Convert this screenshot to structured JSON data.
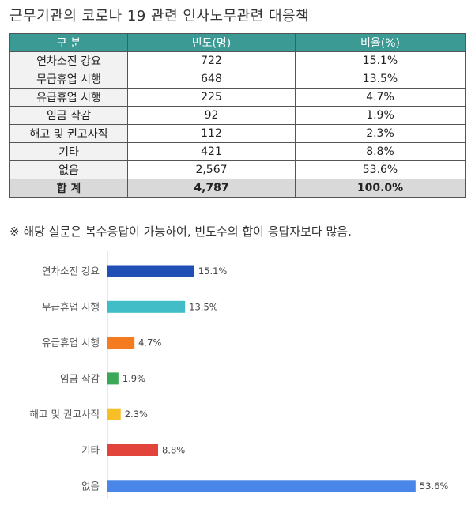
{
  "title": "근무기관의 코로나 19 관련 인사노무관련 대응책",
  "table": {
    "headers": [
      "구 분",
      "빈도(명)",
      "비율(%)"
    ],
    "rows": [
      [
        "연차소진 강요",
        "722",
        "15.1%"
      ],
      [
        "무급휴업 시행",
        "648",
        "13.5%"
      ],
      [
        "유급휴업 시행",
        "225",
        "4.7%"
      ],
      [
        "임금 삭감",
        "92",
        "1.9%"
      ],
      [
        "해고 및 권고사직",
        "112",
        "2.3%"
      ],
      [
        "기타",
        "421",
        "8.8%"
      ],
      [
        "없음",
        "2,567",
        "53.6%"
      ]
    ],
    "total": [
      "합 계",
      "4,787",
      "100.0%"
    ]
  },
  "note": "※ 해당 설문은 복수응답이 가능하여, 빈도수의 합이 응답자보다 많음.",
  "chart_data": {
    "type": "bar",
    "orientation": "horizontal",
    "categories": [
      "연차소진 강요",
      "무급휴업 시행",
      "유급휴업 시행",
      "임금 삭감",
      "해고 및 권고사직",
      "기타",
      "없음"
    ],
    "values": [
      15.1,
      13.5,
      4.7,
      1.9,
      2.3,
      8.8,
      53.6
    ],
    "value_labels": [
      "15.1%",
      "13.5%",
      "4.7%",
      "1.9%",
      "2.3%",
      "8.8%",
      "53.6%"
    ],
    "colors": [
      "#1f4fb5",
      "#41bdc8",
      "#f47b20",
      "#3aa856",
      "#f6bf26",
      "#e2443b",
      "#4a86e8"
    ],
    "title": "",
    "xlabel": "",
    "ylabel": "",
    "xlim": [
      0,
      55
    ],
    "grid": false,
    "legend": "none"
  }
}
